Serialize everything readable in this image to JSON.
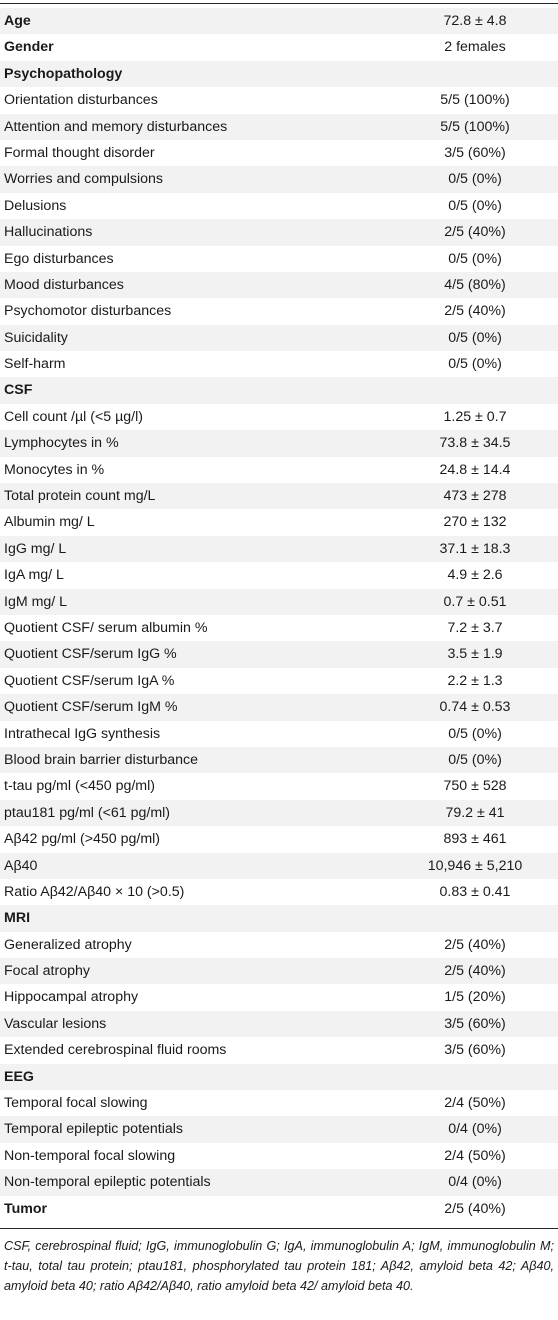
{
  "rows": [
    {
      "label": "Age",
      "value": "72.8 ± 4.8",
      "header": true
    },
    {
      "label": "Gender",
      "value": "2 females",
      "header": true
    },
    {
      "label": "Psychopathology",
      "value": "",
      "header": true
    },
    {
      "label": "Orientation disturbances",
      "value": "5/5 (100%)"
    },
    {
      "label": "Attention and memory disturbances",
      "value": "5/5 (100%)"
    },
    {
      "label": "Formal thought disorder",
      "value": "3/5 (60%)"
    },
    {
      "label": "Worries and compulsions",
      "value": "0/5 (0%)"
    },
    {
      "label": "Delusions",
      "value": "0/5 (0%)"
    },
    {
      "label": "Hallucinations",
      "value": "2/5 (40%)"
    },
    {
      "label": "Ego disturbances",
      "value": "0/5 (0%)"
    },
    {
      "label": "Mood disturbances",
      "value": "4/5 (80%)"
    },
    {
      "label": "Psychomotor disturbances",
      "value": "2/5 (40%)"
    },
    {
      "label": "Suicidality",
      "value": "0/5 (0%)"
    },
    {
      "label": "Self-harm",
      "value": "0/5 (0%)"
    },
    {
      "label": "CSF",
      "value": "",
      "header": true
    },
    {
      "label": "Cell count /µl (<5 µg/l)",
      "value": "1.25 ± 0.7"
    },
    {
      "label": "Lymphocytes in %",
      "value": "73.8 ± 34.5"
    },
    {
      "label": "Monocytes in %",
      "value": "24.8 ± 14.4"
    },
    {
      "label": "Total protein count mg/L",
      "value": "473 ± 278"
    },
    {
      "label": "Albumin mg/ L",
      "value": "270 ± 132"
    },
    {
      "label": "IgG mg/ L",
      "value": "37.1 ± 18.3"
    },
    {
      "label": "IgA mg/ L",
      "value": "4.9 ± 2.6"
    },
    {
      "label": "IgM mg/ L",
      "value": "0.7 ± 0.51"
    },
    {
      "label": "Quotient CSF/ serum albumin %",
      "value": "7.2 ± 3.7"
    },
    {
      "label": "Quotient CSF/serum IgG %",
      "value": "3.5 ± 1.9"
    },
    {
      "label": "Quotient CSF/serum IgA %",
      "value": "2.2 ± 1.3"
    },
    {
      "label": "Quotient CSF/serum IgM %",
      "value": "0.74 ± 0.53"
    },
    {
      "label": "Intrathecal IgG synthesis",
      "value": "0/5 (0%)"
    },
    {
      "label": "Blood brain barrier disturbance",
      "value": "0/5 (0%)"
    },
    {
      "label": "t-tau pg/ml (<450 pg/ml)",
      "value": "750 ± 528"
    },
    {
      "label": "ptau181 pg/ml (<61 pg/ml)",
      "value": "79.2 ± 41"
    },
    {
      "label": "Aβ42 pg/ml (>450 pg/ml)",
      "value": "893 ± 461"
    },
    {
      "label": "Aβ40",
      "value": "10,946 ± 5,210"
    },
    {
      "label": "Ratio Aβ42/Aβ40 × 10 (>0.5)",
      "value": "0.83 ± 0.41"
    },
    {
      "label": "MRI",
      "value": "",
      "header": true
    },
    {
      "label": "Generalized atrophy",
      "value": "2/5 (40%)"
    },
    {
      "label": "Focal atrophy",
      "value": "2/5 (40%)"
    },
    {
      "label": "Hippocampal atrophy",
      "value": "1/5 (20%)"
    },
    {
      "label": "Vascular lesions",
      "value": "3/5 (60%)"
    },
    {
      "label": "Extended cerebrospinal fluid rooms",
      "value": "3/5 (60%)"
    },
    {
      "label": "EEG",
      "value": "",
      "header": true
    },
    {
      "label": "Temporal focal slowing",
      "value": "2/4 (50%)"
    },
    {
      "label": "Temporal epileptic potentials",
      "value": "0/4 (0%)"
    },
    {
      "label": "Non-temporal focal slowing",
      "value": "2/4 (50%)"
    },
    {
      "label": "Non-temporal epileptic potentials",
      "value": "0/4 (0%)"
    },
    {
      "label": "Tumor",
      "value": "2/5 (40%)",
      "header": true
    }
  ],
  "footnote": "CSF, cerebrospinal fluid; IgG, immunoglobulin G; IgA, immunoglobulin A; IgM, immunoglobulin M; t-tau, total tau protein; ptau181, phosphorylated tau protein 181; Aβ42, amyloid beta 42; Aβ40, amyloid beta 40; ratio Aβ42/Aβ40, ratio amyloid beta 42/ amyloid beta 40."
}
